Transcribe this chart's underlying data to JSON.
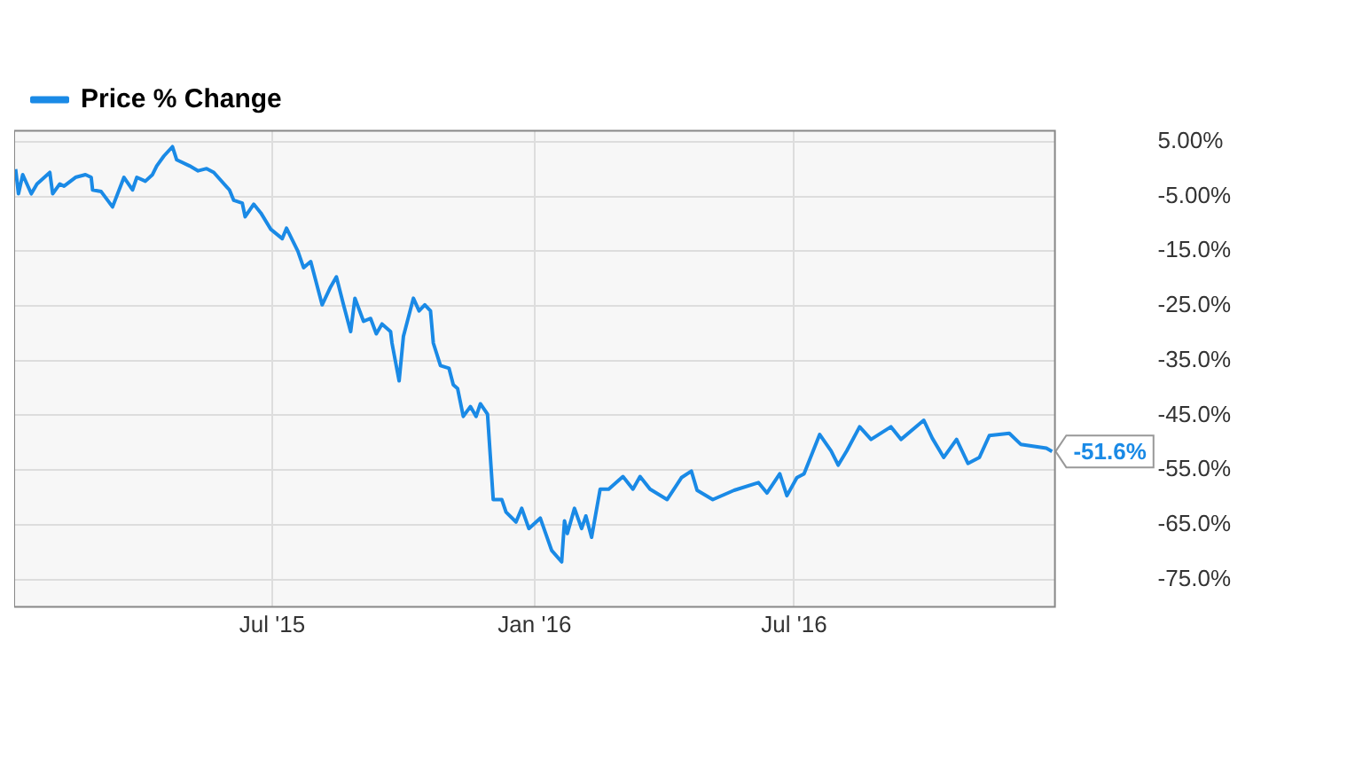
{
  "chart_data": {
    "type": "line",
    "xlim": [
      "2015-01-01",
      "2016-12-31"
    ],
    "ylim": [
      -80,
      7
    ],
    "xticks": [
      {
        "value": "2015-07-01",
        "label": "Jul '15"
      },
      {
        "value": "2016-01-01",
        "label": "Jan '16"
      },
      {
        "value": "2016-07-01",
        "label": "Jul '16"
      }
    ],
    "yticks": [
      {
        "value": 5,
        "label": "5.00%"
      },
      {
        "value": -5,
        "label": "-5.00%"
      },
      {
        "value": -15,
        "label": "-15.0%"
      },
      {
        "value": -25,
        "label": "-25.0%"
      },
      {
        "value": -35,
        "label": "-35.0%"
      },
      {
        "value": -45,
        "label": "-45.0%"
      },
      {
        "value": -55,
        "label": "-55.0%"
      },
      {
        "value": -65,
        "label": "-65.0%"
      },
      {
        "value": -75,
        "label": "-75.0%"
      }
    ],
    "grid": true,
    "legend": "top left",
    "marker": "none",
    "line_style": "solid",
    "annotations": [
      {
        "text": "-51.6%",
        "x": "2016-12-29",
        "y": -51.6
      }
    ],
    "x": [
      "2015-01-02",
      "2015-01-04",
      "2015-01-07",
      "2015-01-13",
      "2015-01-17",
      "2015-01-26",
      "2015-01-28",
      "2015-02-02",
      "2015-02-05",
      "2015-02-13",
      "2015-02-20",
      "2015-02-24",
      "2015-02-25",
      "2015-03-03",
      "2015-03-11",
      "2015-03-19",
      "2015-03-25",
      "2015-03-28",
      "2015-04-03",
      "2015-04-08",
      "2015-04-11",
      "2015-04-16",
      "2015-04-22",
      "2015-04-25",
      "2015-05-04",
      "2015-05-10",
      "2015-05-16",
      "2015-05-21",
      "2015-06-01",
      "2015-06-04",
      "2015-06-10",
      "2015-06-12",
      "2015-06-18",
      "2015-06-23",
      "2015-06-30",
      "2015-07-08",
      "2015-07-11",
      "2015-07-19",
      "2015-07-23",
      "2015-07-28",
      "2015-08-05",
      "2015-08-11",
      "2015-08-15",
      "2015-08-20",
      "2015-08-25",
      "2015-08-28",
      "2015-09-03",
      "2015-09-08",
      "2015-09-12",
      "2015-09-16",
      "2015-09-22",
      "2015-09-23",
      "2015-09-28",
      "2015-10-01",
      "2015-10-08",
      "2015-10-12",
      "2015-10-16",
      "2015-10-20",
      "2015-10-22",
      "2015-10-27",
      "2015-11-02",
      "2015-11-05",
      "2015-11-08",
      "2015-11-12",
      "2015-11-17",
      "2015-11-21",
      "2015-11-24",
      "2015-11-29",
      "2015-12-03",
      "2015-12-09",
      "2015-12-12",
      "2015-12-19",
      "2015-12-23",
      "2015-12-28",
      "2016-01-05",
      "2016-01-13",
      "2016-01-20",
      "2016-01-22",
      "2016-01-24",
      "2016-01-29",
      "2016-02-03",
      "2016-02-06",
      "2016-02-10",
      "2016-02-16",
      "2016-02-22",
      "2016-03-03",
      "2016-03-10",
      "2016-03-15",
      "2016-03-22",
      "2016-04-03",
      "2016-04-13",
      "2016-04-20",
      "2016-04-24",
      "2016-05-05",
      "2016-05-20",
      "2016-06-06",
      "2016-06-12",
      "2016-06-21",
      "2016-06-26",
      "2016-07-03",
      "2016-07-08",
      "2016-07-19",
      "2016-07-27",
      "2016-08-01",
      "2016-08-07",
      "2016-08-16",
      "2016-08-24",
      "2016-09-07",
      "2016-09-14",
      "2016-09-30",
      "2016-10-06",
      "2016-10-14",
      "2016-10-23",
      "2016-10-31",
      "2016-11-08",
      "2016-11-15",
      "2016-11-29",
      "2016-12-07",
      "2016-12-25",
      "2016-12-29"
    ],
    "series": [
      {
        "name": "Price % Change",
        "color": "#1a8ae6",
        "values": [
          0,
          -4.5,
          -1.0,
          -4.5,
          -2.7,
          -0.6,
          -4.5,
          -2.7,
          -3.1,
          -1.5,
          -1.0,
          -1.5,
          -3.8,
          -4.1,
          -6.9,
          -1.5,
          -3.8,
          -1.5,
          -2.2,
          -1.0,
          0.6,
          2.4,
          4.1,
          1.7,
          0.6,
          -0.3,
          0.1,
          -0.6,
          -3.8,
          -5.7,
          -6.2,
          -8.7,
          -6.4,
          -8.0,
          -11.0,
          -12.7,
          -10.8,
          -15.0,
          -18.0,
          -16.9,
          -24.8,
          -21.5,
          -19.7,
          -24.8,
          -29.7,
          -23.6,
          -27.8,
          -27.3,
          -30.1,
          -28.3,
          -29.7,
          -31.8,
          -38.7,
          -30.6,
          -23.6,
          -25.9,
          -24.8,
          -25.9,
          -31.8,
          -35.9,
          -36.4,
          -39.4,
          -40.1,
          -45.2,
          -43.4,
          -45.2,
          -42.9,
          -44.8,
          -60.4,
          -60.4,
          -62.7,
          -64.5,
          -62.0,
          -65.7,
          -63.8,
          -69.7,
          -71.8,
          -64.3,
          -66.6,
          -62.0,
          -65.7,
          -63.4,
          -67.3,
          -58.5,
          -58.5,
          -56.2,
          -58.5,
          -56.2,
          -58.5,
          -60.4,
          -56.4,
          -55.2,
          -58.7,
          -60.4,
          -58.7,
          -57.3,
          -59.2,
          -55.7,
          -59.7,
          -56.4,
          -55.7,
          -48.5,
          -51.5,
          -54.1,
          -51.5,
          -47.1,
          -49.4,
          -47.1,
          -49.4,
          -45.9,
          -49.2,
          -52.7,
          -49.4,
          -53.8,
          -52.7,
          -48.7,
          -48.3,
          -50.3,
          -51.0,
          -51.6
        ]
      }
    ]
  }
}
